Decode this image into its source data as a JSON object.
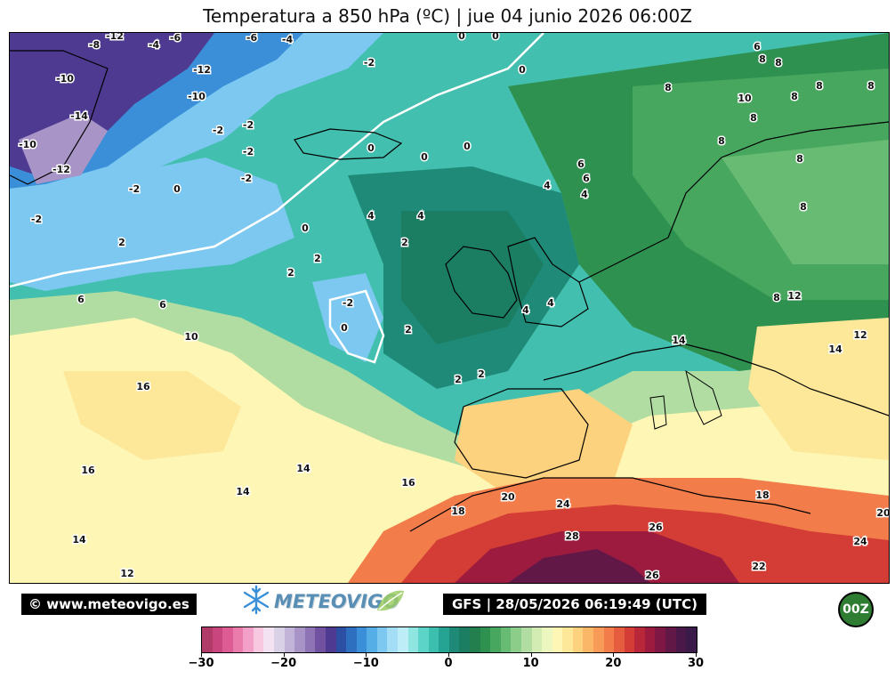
{
  "title": "Temperatura a 850 hPa (ºC) | jue 04 junio 2026 06:00Z",
  "footer": {
    "copyright": "© www.meteovigo.es",
    "logo_text": "METEOVIGO",
    "run_info": "GFS | 28/05/2026 06:19:49 (UTC)",
    "cycle_badge": "00Z"
  },
  "colorbar": {
    "min": -30,
    "max": 30,
    "tick_labels": [
      "−30",
      "−20",
      "−10",
      "0",
      "10",
      "20",
      "30"
    ],
    "colors": [
      "#b03a68",
      "#c9457d",
      "#dc5c93",
      "#e97cab",
      "#f2a0c8",
      "#f8c8e0",
      "#f3e3f2",
      "#d9d2e6",
      "#c2b4d8",
      "#a894c6",
      "#8e74b5",
      "#7152a0",
      "#4e3b91",
      "#2c4ea3",
      "#2f6fc0",
      "#3a8fd8",
      "#55aee6",
      "#7cc8f0",
      "#a3def6",
      "#bdeef8",
      "#8fe6e0",
      "#5cd4c8",
      "#3cbfae",
      "#25a393",
      "#1f8a78",
      "#1b7d62",
      "#237f4e",
      "#2f9150",
      "#47a75e",
      "#68bb72",
      "#8dcd8a",
      "#b1dda2",
      "#d3ecb4",
      "#ecf7c0",
      "#fdf6b4",
      "#fde89a",
      "#fdd27e",
      "#fbb768",
      "#f89b58",
      "#f27c4a",
      "#e65c3e",
      "#d43d35",
      "#b9283a",
      "#9c1b3f",
      "#7f1744",
      "#621847",
      "#4a1849",
      "#3a1a48"
    ]
  },
  "contour_labels": [
    {
      "v": "-8"
    },
    {
      "v": "-12"
    },
    {
      "v": "-4"
    },
    {
      "v": "-6"
    },
    {
      "v": "-6"
    },
    {
      "v": "-4"
    },
    {
      "v": "0"
    },
    {
      "v": "0"
    },
    {
      "v": "-10"
    },
    {
      "v": "-12"
    },
    {
      "v": "-2"
    },
    {
      "v": "0"
    },
    {
      "v": "-10"
    },
    {
      "v": "-14"
    },
    {
      "v": "-2"
    },
    {
      "v": "-2"
    },
    {
      "v": "-10"
    },
    {
      "v": "-12"
    },
    {
      "v": "-2"
    },
    {
      "v": "0"
    },
    {
      "v": "0"
    },
    {
      "v": "0"
    },
    {
      "v": "-2"
    },
    {
      "v": "0"
    },
    {
      "v": "-2"
    },
    {
      "v": "-2"
    },
    {
      "v": "2"
    },
    {
      "v": "4"
    },
    {
      "v": "4"
    },
    {
      "v": "2"
    },
    {
      "v": "2"
    },
    {
      "v": "0"
    },
    {
      "v": "2"
    },
    {
      "v": "6"
    },
    {
      "v": "6"
    },
    {
      "v": "10"
    },
    {
      "v": "-2"
    },
    {
      "v": "0"
    },
    {
      "v": "2"
    },
    {
      "v": "4"
    },
    {
      "v": "4"
    },
    {
      "v": "2"
    },
    {
      "v": "2"
    },
    {
      "v": "16"
    },
    {
      "v": "16"
    },
    {
      "v": "14"
    },
    {
      "v": "14"
    },
    {
      "v": "16"
    },
    {
      "v": "14"
    },
    {
      "v": "12"
    },
    {
      "v": "18"
    },
    {
      "v": "20"
    },
    {
      "v": "24"
    },
    {
      "v": "28"
    },
    {
      "v": "26"
    },
    {
      "v": "26"
    },
    {
      "v": "18"
    },
    {
      "v": "22"
    },
    {
      "v": "24"
    },
    {
      "v": "20"
    },
    {
      "v": "6"
    },
    {
      "v": "8"
    },
    {
      "v": "8"
    },
    {
      "v": "8"
    },
    {
      "v": "10"
    },
    {
      "v": "8"
    },
    {
      "v": "8"
    },
    {
      "v": "8"
    },
    {
      "v": "8"
    },
    {
      "v": "8"
    },
    {
      "v": "6"
    },
    {
      "v": "6"
    },
    {
      "v": "4"
    },
    {
      "v": "4"
    },
    {
      "v": "8"
    },
    {
      "v": "8"
    },
    {
      "v": "8"
    },
    {
      "v": "12"
    },
    {
      "v": "14"
    },
    {
      "v": "14"
    },
    {
      "v": "12"
    }
  ]
}
